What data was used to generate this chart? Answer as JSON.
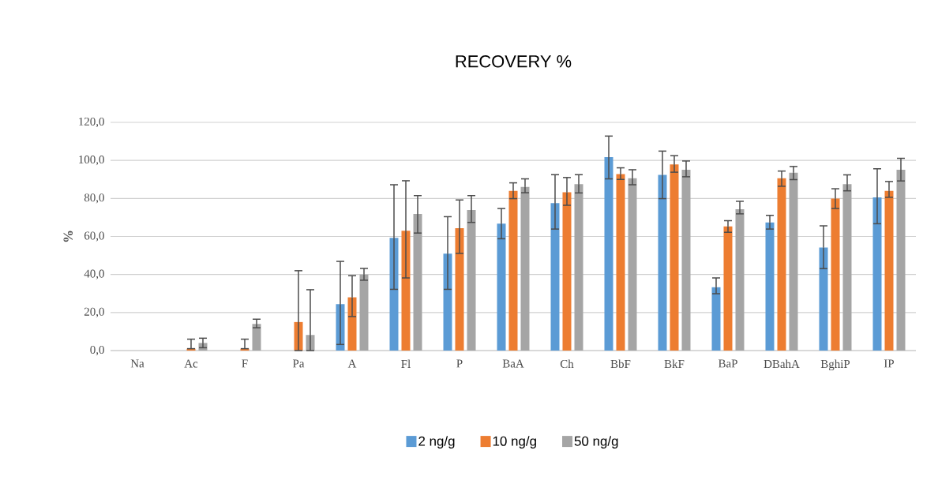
{
  "chart_data": {
    "type": "bar",
    "title": "RECOVERY %",
    "ylabel": "%",
    "categories": [
      "Na",
      "Ac",
      "F",
      "Pa",
      "A",
      "Fl",
      "P",
      "BaA",
      "Ch",
      "BbF",
      "BkF",
      "BaP",
      "DBahA",
      "BghiP",
      "IP"
    ],
    "series": [
      {
        "name": "2 ng/g",
        "color": "#5b9bd5",
        "values": [
          null,
          null,
          null,
          null,
          24.4,
          59.3,
          51.0,
          66.7,
          77.5,
          101.7,
          92.4,
          33.3,
          67.4,
          54.2,
          80.6
        ],
        "errors": [
          null,
          null,
          null,
          null,
          [
            3.2,
            46.9
          ],
          [
            32.2,
            87.2
          ],
          [
            32.2,
            70.4
          ],
          [
            58.8,
            74.7
          ],
          [
            63.9,
            92.5
          ],
          [
            90.3,
            112.8
          ],
          [
            79.9,
            104.9
          ],
          [
            29.9,
            38.2
          ],
          [
            63.9,
            71.1
          ],
          [
            43.1,
            65.6
          ],
          [
            66.7,
            95.6
          ]
        ]
      },
      {
        "name": "10 ng/g",
        "color": "#ed7d31",
        "values": [
          null,
          1.0,
          1.0,
          15.0,
          28.0,
          63.0,
          64.4,
          84.0,
          83.3,
          92.8,
          97.9,
          65.3,
          90.6,
          79.9,
          84.0
        ],
        "errors": [
          null,
          [
            1.0,
            6
          ],
          [
            1.0,
            6
          ],
          [
            0,
            42
          ],
          [
            17.9,
            39.4
          ],
          [
            38.2,
            89.3
          ],
          [
            51.1,
            79.2
          ],
          [
            79.9,
            88.2
          ],
          [
            76.4,
            91.0
          ],
          [
            90.0,
            96.1
          ],
          [
            93.8,
            102.5
          ],
          [
            62.2,
            68.3
          ],
          [
            86.4,
            94.4
          ],
          [
            74.7,
            85.1
          ],
          [
            80.6,
            88.9
          ]
        ]
      },
      {
        "name": "50 ng/g",
        "color": "#a5a5a5",
        "values": [
          null,
          4.0,
          14.0,
          8.2,
          40.0,
          71.8,
          73.9,
          86.1,
          87.5,
          90.6,
          95.1,
          74.3,
          93.5,
          87.5,
          95.1
        ],
        "errors": [
          null,
          [
            1.5,
            6.5
          ],
          [
            12.0,
            16.5
          ],
          [
            0,
            32
          ],
          [
            37.0,
            43.2
          ],
          [
            61.8,
            81.5
          ],
          [
            67.4,
            81.5
          ],
          [
            83.0,
            90.3
          ],
          [
            82.9,
            92.5
          ],
          [
            87.2,
            95.1
          ],
          [
            91.4,
            99.7
          ],
          [
            71.9,
            78.5
          ],
          [
            89.9,
            96.8
          ],
          [
            84.0,
            92.4
          ],
          [
            89.2,
            101.1
          ]
        ]
      }
    ],
    "ylim": [
      0,
      120
    ],
    "yticks": [
      {
        "value": 0,
        "label": "0,0"
      },
      {
        "value": 20,
        "label": "20,0"
      },
      {
        "value": 40,
        "label": "40,0"
      },
      {
        "value": 60,
        "label": "60,0"
      },
      {
        "value": 80,
        "label": "80,0"
      },
      {
        "value": 100,
        "label": "100,0"
      },
      {
        "value": 120,
        "label": "120,0"
      }
    ],
    "grid": "y",
    "legend": "bottom"
  }
}
